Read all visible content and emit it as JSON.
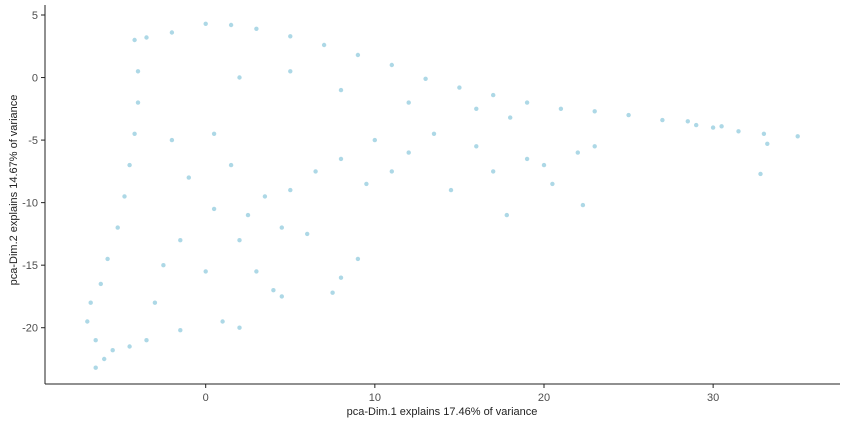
{
  "chart_data": {
    "type": "scatter",
    "title": "",
    "xlabel": "pca-Dim.1 explains 17.46% of variance",
    "ylabel": "pca-Dim.2 explains 14.67% of variance",
    "xlim": [
      -9.5,
      37.5
    ],
    "ylim": [
      -24.5,
      5.8
    ],
    "x_ticks": [
      0,
      10,
      20,
      30
    ],
    "x_tick_labels": [
      "0",
      "10",
      "20",
      "30"
    ],
    "y_ticks": [
      5,
      0,
      -5,
      -10,
      -15,
      -20
    ],
    "y_tick_labels": [
      "5",
      "0",
      "-5",
      "-10",
      "-15",
      "-20"
    ],
    "grid": false,
    "legend": "none",
    "point_color": "#ADD8E6",
    "series": [
      {
        "points": [
          [
            -7.0,
            -19.5
          ],
          [
            -6.5,
            -21.0
          ],
          [
            -6.0,
            -22.5
          ],
          [
            -6.5,
            -23.2
          ],
          [
            -5.5,
            -21.8
          ],
          [
            -4.5,
            -21.5
          ],
          [
            -6.8,
            -18.0
          ],
          [
            -6.2,
            -16.5
          ],
          [
            -5.8,
            -14.5
          ],
          [
            -5.2,
            -12.0
          ],
          [
            -4.8,
            -9.5
          ],
          [
            -4.5,
            -7.0
          ],
          [
            -4.2,
            -4.5
          ],
          [
            -4.0,
            -2.0
          ],
          [
            -4.0,
            0.5
          ],
          [
            -4.2,
            3.0
          ],
          [
            -3.5,
            3.2
          ],
          [
            -2.0,
            3.6
          ],
          [
            0.0,
            4.3
          ],
          [
            1.5,
            4.2
          ],
          [
            3.0,
            3.9
          ],
          [
            5.0,
            3.3
          ],
          [
            7.0,
            2.6
          ],
          [
            9.0,
            1.8
          ],
          [
            11.0,
            1.0
          ],
          [
            13.0,
            -0.1
          ],
          [
            15.0,
            -0.8
          ],
          [
            17.0,
            -1.4
          ],
          [
            19.0,
            -2.0
          ],
          [
            21.0,
            -2.5
          ],
          [
            23.0,
            -2.7
          ],
          [
            25.0,
            -3.0
          ],
          [
            27.0,
            -3.4
          ],
          [
            29.0,
            -3.8
          ],
          [
            30.5,
            -3.9
          ],
          [
            31.5,
            -4.3
          ],
          [
            33.0,
            -4.5
          ],
          [
            35.0,
            -4.7
          ],
          [
            32.8,
            -7.7
          ],
          [
            33.2,
            -5.3
          ],
          [
            30.0,
            -4.0
          ],
          [
            28.5,
            -3.5
          ],
          [
            -2.0,
            -5.0
          ],
          [
            -1.0,
            -8.0
          ],
          [
            0.5,
            -10.5
          ],
          [
            2.0,
            -13.0
          ],
          [
            3.0,
            -15.5
          ],
          [
            4.0,
            -17.0
          ],
          [
            4.5,
            -17.5
          ],
          [
            1.0,
            -19.5
          ],
          [
            -1.5,
            -20.2
          ],
          [
            2.0,
            -20.0
          ],
          [
            -3.5,
            -21.0
          ],
          [
            -3.0,
            -18.0
          ],
          [
            -2.5,
            -15.0
          ],
          [
            -1.5,
            -13.0
          ],
          [
            0.0,
            -15.5
          ],
          [
            2.5,
            -11.0
          ],
          [
            5.0,
            -9.0
          ],
          [
            6.5,
            -7.5
          ],
          [
            8.0,
            -6.5
          ],
          [
            9.5,
            -8.5
          ],
          [
            10.0,
            -5.0
          ],
          [
            11.0,
            -7.5
          ],
          [
            12.0,
            -6.0
          ],
          [
            13.5,
            -4.5
          ],
          [
            14.5,
            -9.0
          ],
          [
            16.0,
            -5.5
          ],
          [
            17.0,
            -7.5
          ],
          [
            17.8,
            -11.0
          ],
          [
            19.0,
            -6.5
          ],
          [
            20.0,
            -7.0
          ],
          [
            20.5,
            -8.5
          ],
          [
            22.0,
            -6.0
          ],
          [
            22.3,
            -10.2
          ],
          [
            23.0,
            -5.5
          ],
          [
            9.0,
            -14.5
          ],
          [
            8.0,
            -16.0
          ],
          [
            7.5,
            -17.2
          ],
          [
            6.0,
            -12.5
          ],
          [
            4.5,
            -12.0
          ],
          [
            3.5,
            -9.5
          ],
          [
            1.5,
            -7.0
          ],
          [
            0.5,
            -4.5
          ],
          [
            2.0,
            0.0
          ],
          [
            5.0,
            0.5
          ],
          [
            8.0,
            -1.0
          ],
          [
            12.0,
            -2.0
          ],
          [
            16.0,
            -2.5
          ],
          [
            18.0,
            -3.2
          ]
        ]
      }
    ]
  }
}
